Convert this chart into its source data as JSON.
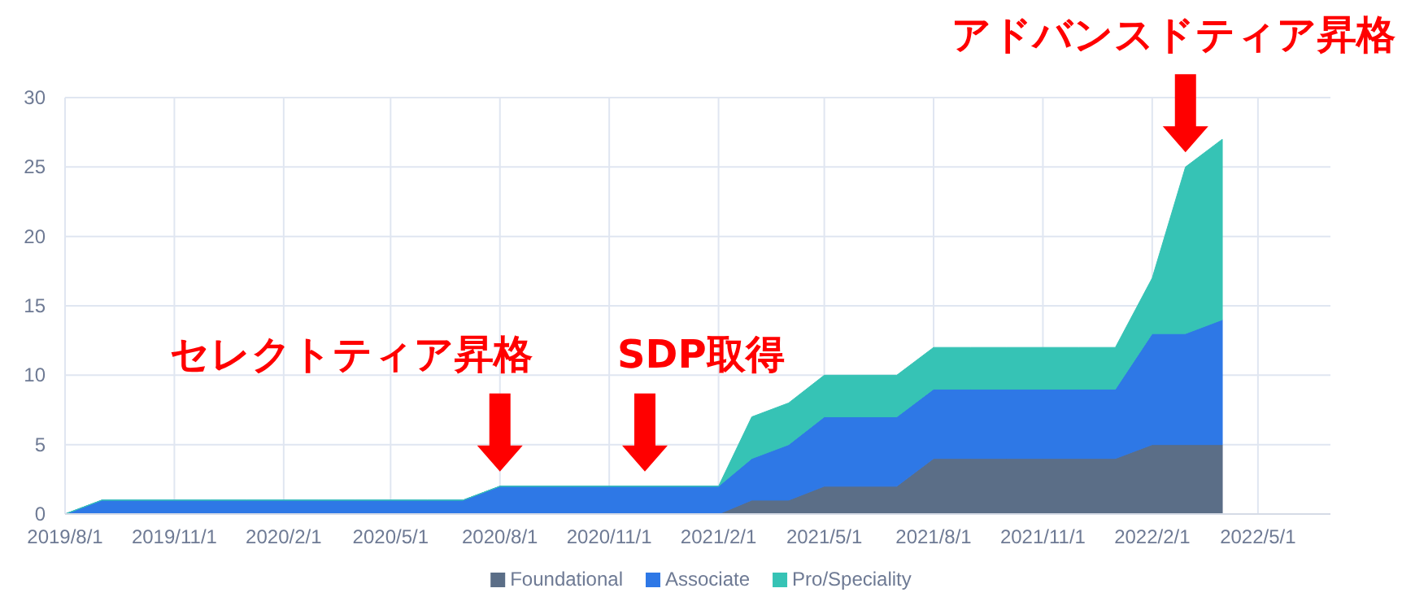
{
  "chart_data": {
    "type": "area",
    "stacked": true,
    "marker": "none",
    "grid": true,
    "legend": "bottom",
    "x": [
      "2019-08-01",
      "2019-09-01",
      "2019-10-01",
      "2019-11-01",
      "2019-12-01",
      "2020-01-01",
      "2020-02-01",
      "2020-03-01",
      "2020-04-01",
      "2020-05-01",
      "2020-06-01",
      "2020-07-01",
      "2020-08-01",
      "2020-09-01",
      "2020-10-01",
      "2020-11-01",
      "2020-12-01",
      "2021-01-01",
      "2021-02-01",
      "2021-03-01",
      "2021-04-01",
      "2021-05-01",
      "2021-06-01",
      "2021-07-01",
      "2021-08-01",
      "2021-09-01",
      "2021-10-01",
      "2021-11-01",
      "2021-12-01",
      "2022-01-01",
      "2022-02-01",
      "2022-03-01",
      "2022-04-01"
    ],
    "series": [
      {
        "name": "Foundational",
        "color": "#5b6e87",
        "values": [
          0,
          0,
          0,
          0,
          0,
          0,
          0,
          0,
          0,
          0,
          0,
          0,
          0,
          0,
          0,
          0,
          0,
          0,
          0,
          1,
          1,
          2,
          2,
          2,
          4,
          4,
          4,
          4,
          4,
          4,
          5,
          5,
          5
        ]
      },
      {
        "name": "Associate",
        "color": "#2e78e6",
        "values": [
          0,
          1,
          1,
          1,
          1,
          1,
          1,
          1,
          1,
          1,
          1,
          1,
          2,
          2,
          2,
          2,
          2,
          2,
          2,
          3,
          4,
          5,
          5,
          5,
          5,
          5,
          5,
          5,
          5,
          5,
          8,
          8,
          9
        ]
      },
      {
        "name": "Pro/Speciality",
        "color": "#36c3b5",
        "values": [
          0,
          0,
          0,
          0,
          0,
          0,
          0,
          0,
          0,
          0,
          0,
          0,
          0,
          0,
          0,
          0,
          0,
          0,
          0,
          3,
          3,
          3,
          3,
          3,
          3,
          3,
          3,
          3,
          3,
          3,
          4,
          12,
          13
        ]
      }
    ],
    "xlim": [
      "2019-08-01",
      "2022-07-01"
    ],
    "xticks": [
      {
        "value": "2019-08-01",
        "label": "2019/8/1"
      },
      {
        "value": "2019-11-01",
        "label": "2019/11/1"
      },
      {
        "value": "2020-02-01",
        "label": "2020/2/1"
      },
      {
        "value": "2020-05-01",
        "label": "2020/5/1"
      },
      {
        "value": "2020-08-01",
        "label": "2020/8/1"
      },
      {
        "value": "2020-11-01",
        "label": "2020/11/1"
      },
      {
        "value": "2021-02-01",
        "label": "2021/2/1"
      },
      {
        "value": "2021-05-01",
        "label": "2021/5/1"
      },
      {
        "value": "2021-08-01",
        "label": "2021/8/1"
      },
      {
        "value": "2021-11-01",
        "label": "2021/11/1"
      },
      {
        "value": "2022-02-01",
        "label": "2022/2/1"
      },
      {
        "value": "2022-05-01",
        "label": "2022/5/1"
      }
    ],
    "ylim": [
      0,
      30
    ],
    "yticks": [
      0,
      5,
      10,
      15,
      20,
      25,
      30
    ],
    "annotations": [
      {
        "text": "セレクトティア昇格",
        "x": "2020-08-01",
        "y": 2
      },
      {
        "text": "SDP取得",
        "x": "2020-12-01",
        "y": 2
      },
      {
        "text": "アドバンスドティア昇格",
        "x": "2022-03-01",
        "y": 25
      }
    ]
  }
}
